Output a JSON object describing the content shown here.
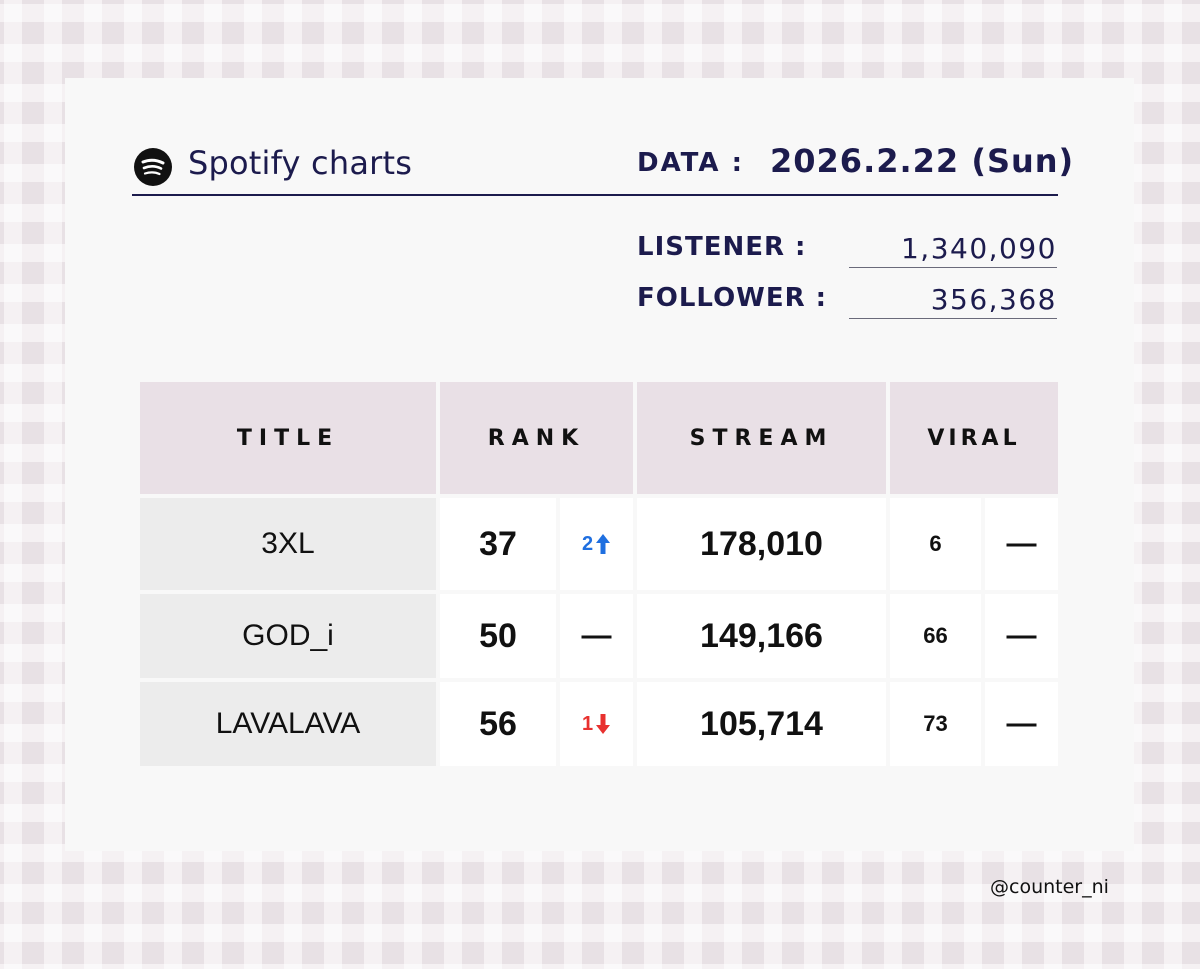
{
  "header": {
    "app_title": "Spotify charts",
    "date_label": "DATA :",
    "date_value": "2026.2.22 (Sun)"
  },
  "stats": {
    "listener_label": "LISTENER :",
    "listener_value": "1,340,090",
    "follower_label": "FOLLOWER :",
    "follower_value": "356,368"
  },
  "table": {
    "headers": {
      "title": "TITLE",
      "rank": "RANK",
      "stream": "STREAM",
      "viral": "VIRAL"
    },
    "rows": [
      {
        "title": "3XL",
        "rank": "37",
        "rank_change": "2",
        "rank_change_dir": "up",
        "stream": "178,010",
        "viral": "6",
        "viral_change": "—"
      },
      {
        "title": "GOD_i",
        "rank": "50",
        "rank_change": "—",
        "rank_change_dir": "none",
        "stream": "149,166",
        "viral": "66",
        "viral_change": "—"
      },
      {
        "title": "LAVALAVA",
        "rank": "56",
        "rank_change": "1",
        "rank_change_dir": "down",
        "stream": "105,714",
        "viral": "73",
        "viral_change": "—"
      }
    ]
  },
  "colors": {
    "navy": "#1c1b4d",
    "up": "#1f6fe0",
    "down": "#e8312f",
    "header_bg": "#e9e0e6"
  },
  "credit": "@counter_ni"
}
